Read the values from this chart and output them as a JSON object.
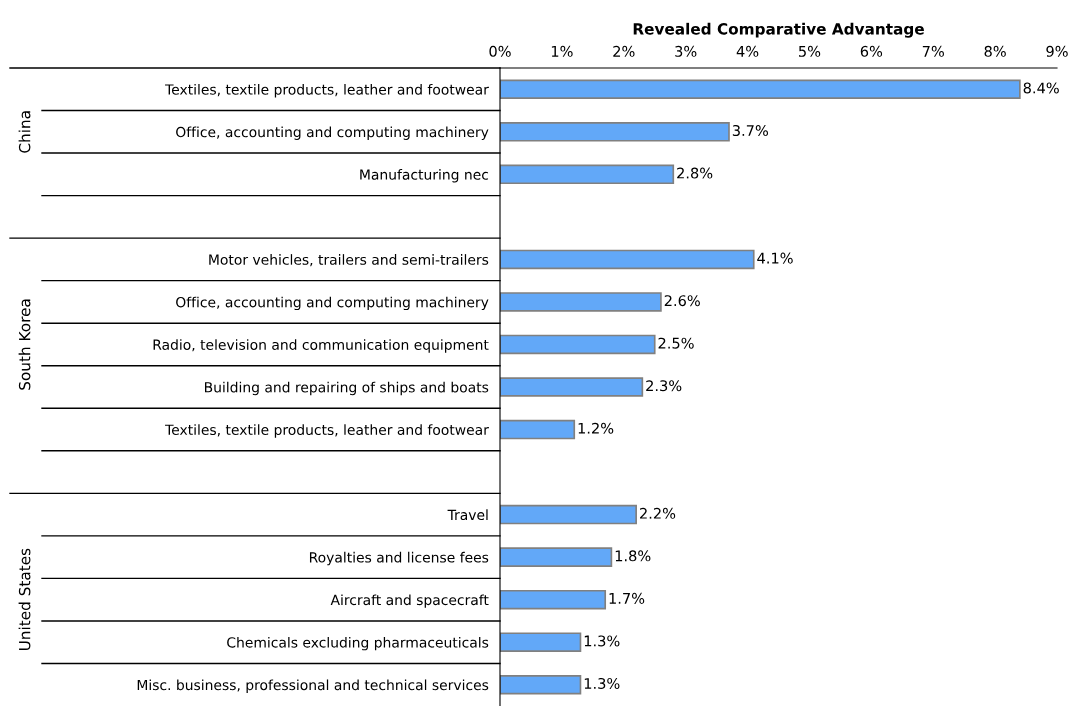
{
  "chart_data": {
    "type": "bar",
    "orientation": "horizontal",
    "xlabel": "Revealed Comparative Advantage",
    "categories": [
      "Textiles, textile products, leather and footwear",
      "Office, accounting and computing machinery",
      "Manufacturing nec",
      null,
      "Motor vehicles, trailers and semi-trailers",
      "Office, accounting and computing machinery",
      "Radio, television and communication equipment",
      "Building and repairing of ships and boats",
      "Textiles, textile products, leather and footwear",
      null,
      "Travel",
      "Royalties and license fees",
      "Aircraft and spacecraft",
      "Chemicals excluding pharmaceuticals",
      "Misc. business, professional and technical services"
    ],
    "values": [
      8.4,
      3.7,
      2.8,
      null,
      4.1,
      2.6,
      2.5,
      2.3,
      1.2,
      null,
      2.2,
      1.8,
      1.7,
      1.3,
      1.3
    ],
    "value_labels": [
      "8.4%",
      "3.7%",
      "2.8%",
      null,
      "4.1%",
      "2.6%",
      "2.5%",
      "2.3%",
      "1.2%",
      null,
      "2.2%",
      "1.8%",
      "1.7%",
      "1.3%",
      "1.3%"
    ],
    "color": "#62a8f8",
    "xlim": [
      0,
      9
    ],
    "xticks": [
      {
        "value": 0,
        "label": "0%"
      },
      {
        "value": 1,
        "label": "1%"
      },
      {
        "value": 2,
        "label": "2%"
      },
      {
        "value": 3,
        "label": "3%"
      },
      {
        "value": 4,
        "label": "4%"
      },
      {
        "value": 5,
        "label": "5%"
      },
      {
        "value": 6,
        "label": "6%"
      },
      {
        "value": 7,
        "label": "7%"
      },
      {
        "value": 8,
        "label": "8%"
      },
      {
        "value": 9,
        "label": "9%"
      }
    ],
    "annotations": [
      "China",
      "South Korea",
      "United States"
    ],
    "grid": false
  }
}
